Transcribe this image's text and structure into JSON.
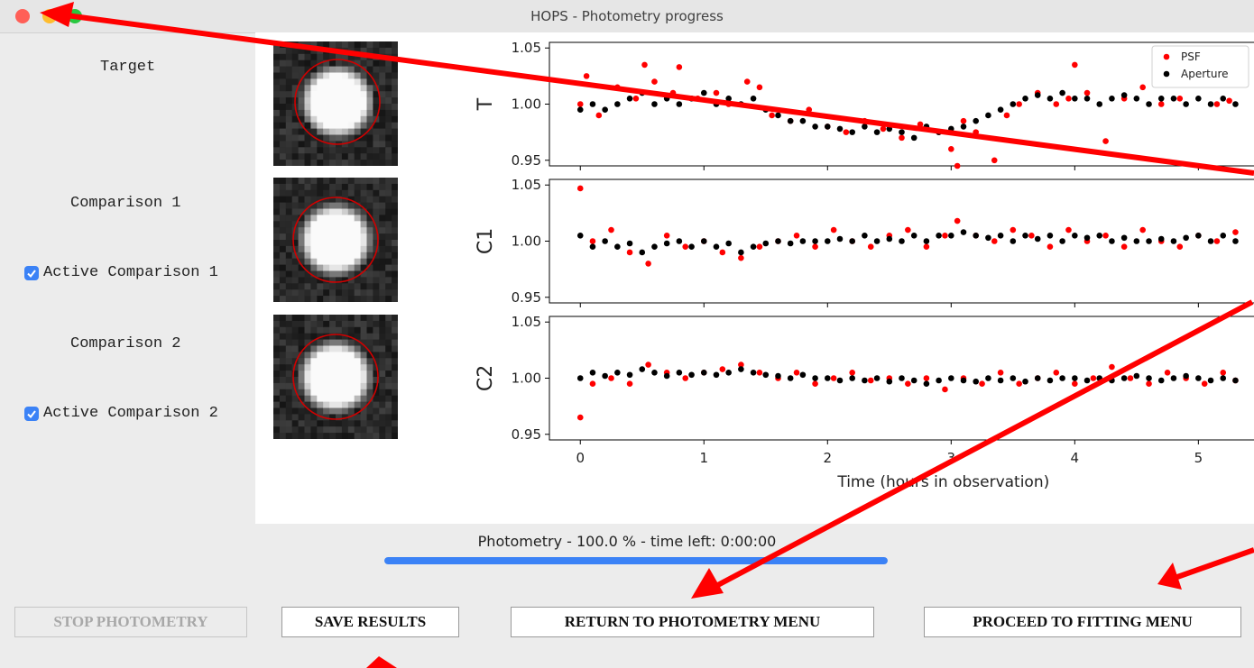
{
  "window": {
    "title": "HOPS - Photometry progress",
    "buttons": [
      "close",
      "minimize",
      "maximize"
    ]
  },
  "stars": [
    {
      "label": "Target"
    },
    {
      "label": "Comparison 1",
      "checkbox_label": "Active Comparison 1",
      "checked": true
    },
    {
      "label": "Comparison 2",
      "checkbox_label": "Active Comparison 2",
      "checked": true
    }
  ],
  "progress": {
    "text": "Photometry - 100.0 % - time left: 0:00:00",
    "value": 1.0,
    "color": "#3b82f6"
  },
  "buttons": {
    "stop": "STOP PHOTOMETRY",
    "save": "SAVE RESULTS",
    "return": "RETURN TO PHOTOMETRY MENU",
    "proceed": "PROCEED TO FITTING MENU"
  },
  "chart_data": {
    "type": "scatter",
    "xlabel": "Time (hours in observation)",
    "x_ticks": [
      "0",
      "1",
      "2",
      "3",
      "4",
      "5"
    ],
    "y_ticks": [
      "0.95",
      "1.00",
      "1.05"
    ],
    "xlim": [
      -0.25,
      5.45
    ],
    "ylim": [
      0.945,
      1.055
    ],
    "legend": {
      "placement": "top-right",
      "entries": [
        {
          "name": "PSF",
          "color": "#ff0000"
        },
        {
          "name": "Aperture",
          "color": "#000000"
        }
      ]
    },
    "panels": [
      {
        "ylabel": "T",
        "series": [
          {
            "name": "PSF",
            "color": "#ff0000",
            "x": [
              0.0,
              0.05,
              0.15,
              0.3,
              0.45,
              0.52,
              0.6,
              0.75,
              0.8,
              0.95,
              1.1,
              1.2,
              1.35,
              1.45,
              1.55,
              1.7,
              1.85,
              2.0,
              2.15,
              2.3,
              2.45,
              2.6,
              2.75,
              2.9,
              3.0,
              3.05,
              3.1,
              3.2,
              3.35,
              3.45,
              3.55,
              3.7,
              3.85,
              3.95,
              4.0,
              4.1,
              4.25,
              4.4,
              4.55,
              4.7,
              4.85,
              5.0,
              5.15,
              5.25
            ],
            "y": [
              1.0,
              1.025,
              0.99,
              1.015,
              1.005,
              1.035,
              1.02,
              1.01,
              1.033,
              1.005,
              1.01,
              1.0,
              1.02,
              1.015,
              0.99,
              0.985,
              0.995,
              0.98,
              0.975,
              0.985,
              0.978,
              0.97,
              0.982,
              0.975,
              0.96,
              0.945,
              0.985,
              0.975,
              0.95,
              0.99,
              1.0,
              1.01,
              1.0,
              1.005,
              1.035,
              1.01,
              0.967,
              1.005,
              1.015,
              1.0,
              1.005,
              1.02,
              1.0,
              1.003
            ]
          },
          {
            "name": "Aperture",
            "color": "#000000",
            "x": [
              0.0,
              0.1,
              0.2,
              0.3,
              0.4,
              0.5,
              0.6,
              0.7,
              0.8,
              0.9,
              1.0,
              1.1,
              1.2,
              1.3,
              1.4,
              1.5,
              1.6,
              1.7,
              1.8,
              1.9,
              2.0,
              2.1,
              2.2,
              2.3,
              2.4,
              2.5,
              2.6,
              2.7,
              2.8,
              2.9,
              3.0,
              3.1,
              3.2,
              3.3,
              3.4,
              3.5,
              3.6,
              3.7,
              3.8,
              3.9,
              4.0,
              4.1,
              4.2,
              4.3,
              4.4,
              4.5,
              4.6,
              4.7,
              4.8,
              4.9,
              5.0,
              5.1,
              5.2,
              5.3
            ],
            "y": [
              0.995,
              1.0,
              0.995,
              1.0,
              1.005,
              1.01,
              1.0,
              1.005,
              1.0,
              1.005,
              1.01,
              1.0,
              1.005,
              1.0,
              1.005,
              0.995,
              0.99,
              0.985,
              0.985,
              0.98,
              0.98,
              0.978,
              0.975,
              0.98,
              0.975,
              0.978,
              0.975,
              0.97,
              0.98,
              0.975,
              0.978,
              0.98,
              0.985,
              0.99,
              0.995,
              1.0,
              1.005,
              1.008,
              1.005,
              1.01,
              1.005,
              1.005,
              1.0,
              1.005,
              1.008,
              1.005,
              1.0,
              1.005,
              1.005,
              1.0,
              1.005,
              1.0,
              1.005,
              1.0
            ]
          }
        ]
      },
      {
        "ylabel": "C1",
        "series": [
          {
            "name": "PSF",
            "color": "#ff0000",
            "x": [
              0.0,
              0.1,
              0.25,
              0.4,
              0.55,
              0.7,
              0.85,
              1.0,
              1.15,
              1.3,
              1.45,
              1.6,
              1.75,
              1.9,
              2.05,
              2.2,
              2.35,
              2.5,
              2.65,
              2.8,
              2.95,
              3.05,
              3.2,
              3.35,
              3.5,
              3.65,
              3.8,
              3.95,
              4.1,
              4.25,
              4.4,
              4.55,
              4.7,
              4.85,
              5.0,
              5.15,
              5.3
            ],
            "y": [
              1.047,
              1.0,
              1.01,
              0.99,
              0.98,
              1.005,
              0.995,
              1.0,
              0.99,
              0.985,
              0.995,
              1.0,
              1.005,
              0.995,
              1.01,
              1.0,
              0.995,
              1.005,
              1.01,
              0.995,
              1.005,
              1.018,
              1.005,
              1.0,
              1.01,
              1.005,
              0.995,
              1.01,
              1.0,
              1.005,
              0.995,
              1.01,
              1.0,
              0.995,
              1.005,
              1.0,
              1.008
            ]
          },
          {
            "name": "Aperture",
            "color": "#000000",
            "x": [
              0.0,
              0.1,
              0.2,
              0.3,
              0.4,
              0.5,
              0.6,
              0.7,
              0.8,
              0.9,
              1.0,
              1.1,
              1.2,
              1.3,
              1.4,
              1.5,
              1.6,
              1.7,
              1.8,
              1.9,
              2.0,
              2.1,
              2.2,
              2.3,
              2.4,
              2.5,
              2.6,
              2.7,
              2.8,
              2.9,
              3.0,
              3.1,
              3.2,
              3.3,
              3.4,
              3.5,
              3.6,
              3.7,
              3.8,
              3.9,
              4.0,
              4.1,
              4.2,
              4.3,
              4.4,
              4.5,
              4.6,
              4.7,
              4.8,
              4.9,
              5.0,
              5.1,
              5.2,
              5.3
            ],
            "y": [
              1.005,
              0.995,
              1.0,
              0.995,
              0.998,
              0.99,
              0.995,
              0.998,
              1.0,
              0.995,
              1.0,
              0.995,
              0.998,
              0.99,
              0.995,
              0.998,
              1.0,
              0.998,
              1.0,
              1.0,
              1.0,
              1.002,
              1.0,
              1.005,
              1.0,
              1.002,
              1.0,
              1.005,
              1.0,
              1.005,
              1.005,
              1.008,
              1.005,
              1.003,
              1.005,
              1.0,
              1.005,
              1.002,
              1.005,
              1.0,
              1.005,
              1.003,
              1.005,
              1.0,
              1.003,
              1.0,
              1.0,
              1.002,
              1.0,
              1.003,
              1.005,
              1.0,
              1.005,
              1.0
            ]
          }
        ]
      },
      {
        "ylabel": "C2",
        "series": [
          {
            "name": "PSF",
            "color": "#ff0000",
            "x": [
              0.0,
              0.1,
              0.25,
              0.4,
              0.55,
              0.7,
              0.85,
              1.0,
              1.15,
              1.3,
              1.45,
              1.6,
              1.75,
              1.9,
              2.05,
              2.2,
              2.35,
              2.5,
              2.65,
              2.8,
              2.95,
              3.1,
              3.25,
              3.4,
              3.55,
              3.7,
              3.85,
              4.0,
              4.15,
              4.3,
              4.45,
              4.6,
              4.75,
              4.9,
              5.05,
              5.2,
              5.3
            ],
            "y": [
              0.965,
              0.995,
              1.0,
              0.995,
              1.012,
              1.005,
              1.0,
              1.005,
              1.008,
              1.012,
              1.005,
              1.0,
              1.005,
              0.995,
              1.0,
              1.005,
              0.998,
              1.0,
              0.995,
              1.0,
              0.99,
              1.0,
              0.995,
              1.005,
              0.995,
              1.0,
              1.005,
              0.995,
              1.0,
              1.01,
              1.0,
              0.995,
              1.005,
              1.0,
              0.995,
              1.005,
              0.998
            ]
          },
          {
            "name": "Aperture",
            "color": "#000000",
            "x": [
              0.0,
              0.1,
              0.2,
              0.3,
              0.4,
              0.5,
              0.6,
              0.7,
              0.8,
              0.9,
              1.0,
              1.1,
              1.2,
              1.3,
              1.4,
              1.5,
              1.6,
              1.7,
              1.8,
              1.9,
              2.0,
              2.1,
              2.2,
              2.3,
              2.4,
              2.5,
              2.6,
              2.7,
              2.8,
              2.9,
              3.0,
              3.1,
              3.2,
              3.3,
              3.4,
              3.5,
              3.6,
              3.7,
              3.8,
              3.9,
              4.0,
              4.1,
              4.2,
              4.3,
              4.4,
              4.5,
              4.6,
              4.7,
              4.8,
              4.9,
              5.0,
              5.1,
              5.2,
              5.3
            ],
            "y": [
              1.0,
              1.005,
              1.002,
              1.005,
              1.003,
              1.008,
              1.005,
              1.002,
              1.005,
              1.003,
              1.005,
              1.003,
              1.005,
              1.008,
              1.005,
              1.003,
              1.002,
              1.0,
              1.003,
              1.0,
              1.0,
              0.998,
              1.0,
              0.998,
              1.0,
              0.997,
              1.0,
              0.998,
              0.995,
              0.998,
              1.0,
              0.998,
              0.997,
              1.0,
              0.998,
              1.0,
              0.997,
              1.0,
              0.998,
              1.0,
              1.0,
              0.998,
              1.0,
              0.998,
              1.0,
              1.002,
              1.0,
              0.998,
              1.0,
              1.002,
              1.0,
              0.998,
              1.0,
              0.998
            ]
          }
        ]
      }
    ]
  }
}
